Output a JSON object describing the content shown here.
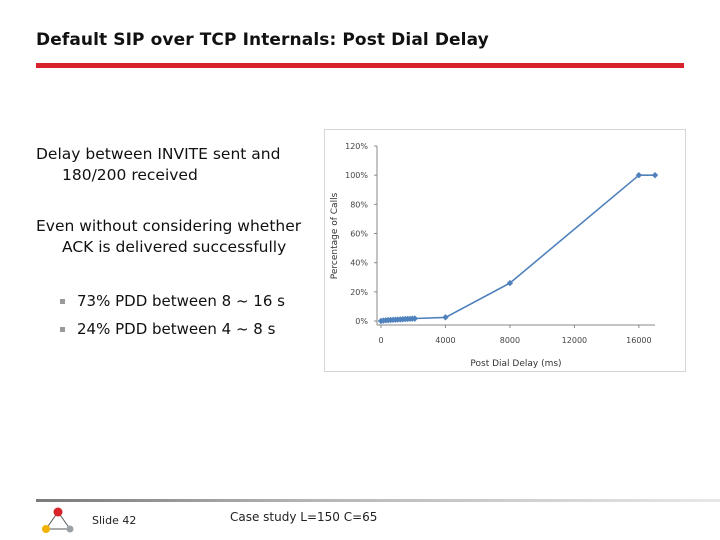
{
  "title": "Default SIP over TCP Internals: Post Dial Delay",
  "paragraphs": [
    {
      "line1": "Delay between INVITE sent and",
      "line2": "180/200 received"
    },
    {
      "line1": "Even without considering whether",
      "line2": "ACK is delivered successfully"
    }
  ],
  "bullets": [
    "73% PDD between 8 ~ 16 s",
    "24% PDD between 4 ~ 8 s"
  ],
  "footer": {
    "slide": "Slide 42",
    "case_study": "Case study L=150 C=65"
  },
  "colors": {
    "accent_rule": "#d8232a",
    "series": "#4f81bd"
  },
  "chart_data": {
    "type": "line",
    "xlabel": "Post Dial Delay (ms)",
    "ylabel": "Percentage of Calls",
    "xlim": [
      0,
      17000
    ],
    "ylim": [
      0,
      1.2
    ],
    "x_ticks": [
      0,
      4000,
      8000,
      12000,
      16000
    ],
    "x_tick_labels": [
      "0",
      "4000",
      "8000",
      "12000",
      "16000"
    ],
    "y_ticks": [
      0,
      0.2,
      0.4,
      0.6,
      0.8,
      1.0,
      1.2
    ],
    "y_tick_labels": [
      "0%",
      "20%",
      "40%",
      "60%",
      "80%",
      "100%",
      "120%"
    ],
    "grid": false,
    "series": [
      {
        "points": [
          {
            "x": 0,
            "y": 0.0
          },
          {
            "x": 150,
            "y": 0.003
          },
          {
            "x": 300,
            "y": 0.005
          },
          {
            "x": 450,
            "y": 0.006
          },
          {
            "x": 600,
            "y": 0.007
          },
          {
            "x": 750,
            "y": 0.008
          },
          {
            "x": 900,
            "y": 0.009
          },
          {
            "x": 1050,
            "y": 0.01
          },
          {
            "x": 1200,
            "y": 0.011
          },
          {
            "x": 1350,
            "y": 0.012
          },
          {
            "x": 1500,
            "y": 0.013
          },
          {
            "x": 1650,
            "y": 0.014
          },
          {
            "x": 1800,
            "y": 0.015
          },
          {
            "x": 1950,
            "y": 0.016
          },
          {
            "x": 2100,
            "y": 0.017
          },
          {
            "x": 4000,
            "y": 0.025
          },
          {
            "x": 8000,
            "y": 0.26
          },
          {
            "x": 16000,
            "y": 1.0
          },
          {
            "x": 17000,
            "y": 1.0
          }
        ]
      }
    ]
  }
}
